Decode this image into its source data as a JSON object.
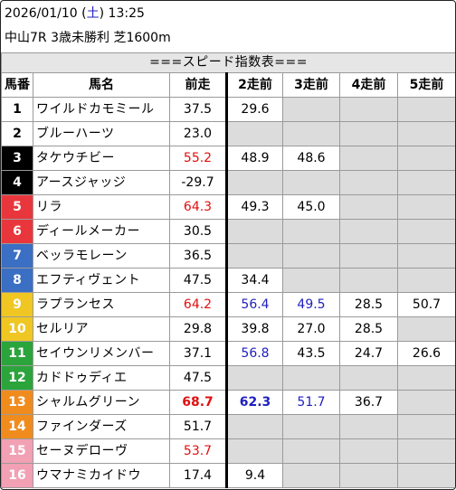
{
  "header": {
    "date": "2026/01/10",
    "weekday": "土",
    "time": "13:25",
    "race_info": "中山7R 3歳未勝利 芝1600m"
  },
  "table_title": "===スピード指数表===",
  "columns": [
    "馬番",
    "馬名",
    "前走",
    "2走前",
    "3走前",
    "4走前",
    "5走前"
  ],
  "colors": {
    "red_value": "#e01010",
    "blue_value": "#2020c0",
    "empty_cell": "#dcdcdc"
  },
  "horses": [
    {
      "num": "1",
      "name": "ワイルドカモミール",
      "bg": "#ffffff",
      "fg": "#000000",
      "vals": [
        "37.5",
        "29.6",
        "",
        "",
        ""
      ],
      "styles": [
        "",
        "",
        "",
        "",
        ""
      ]
    },
    {
      "num": "2",
      "name": "ブルーハーツ",
      "bg": "#ffffff",
      "fg": "#000000",
      "vals": [
        "23.0",
        "",
        "",
        "",
        ""
      ],
      "styles": [
        "",
        "",
        "",
        "",
        ""
      ]
    },
    {
      "num": "3",
      "name": "タケウチビー",
      "bg": "#000000",
      "fg": "#ffffff",
      "vals": [
        "55.2",
        "48.9",
        "48.6",
        "",
        ""
      ],
      "styles": [
        "red",
        "",
        "",
        "",
        ""
      ]
    },
    {
      "num": "4",
      "name": "アースジャッジ",
      "bg": "#000000",
      "fg": "#ffffff",
      "vals": [
        "-29.7",
        "",
        "",
        "",
        ""
      ],
      "styles": [
        "",
        "",
        "",
        "",
        ""
      ]
    },
    {
      "num": "5",
      "name": "リラ",
      "bg": "#e8363c",
      "fg": "#ffffff",
      "vals": [
        "64.3",
        "49.3",
        "45.0",
        "",
        ""
      ],
      "styles": [
        "red",
        "",
        "",
        "",
        ""
      ]
    },
    {
      "num": "6",
      "name": "ディールメーカー",
      "bg": "#e8363c",
      "fg": "#ffffff",
      "vals": [
        "30.5",
        "",
        "",
        "",
        ""
      ],
      "styles": [
        "",
        "",
        "",
        "",
        ""
      ]
    },
    {
      "num": "7",
      "name": "ベッラモレーン",
      "bg": "#3a6fc4",
      "fg": "#ffffff",
      "vals": [
        "36.5",
        "",
        "",
        "",
        ""
      ],
      "styles": [
        "",
        "",
        "",
        "",
        ""
      ]
    },
    {
      "num": "8",
      "name": "エフティヴェント",
      "bg": "#3a6fc4",
      "fg": "#ffffff",
      "vals": [
        "47.5",
        "34.4",
        "",
        "",
        ""
      ],
      "styles": [
        "",
        "",
        "",
        "",
        ""
      ]
    },
    {
      "num": "9",
      "name": "ラプランセス",
      "bg": "#f0c622",
      "fg": "#ffffff",
      "vals": [
        "64.2",
        "56.4",
        "49.5",
        "28.5",
        "50.7"
      ],
      "styles": [
        "red",
        "blue",
        "blue",
        "",
        ""
      ]
    },
    {
      "num": "10",
      "name": "セルリア",
      "bg": "#f0c622",
      "fg": "#ffffff",
      "vals": [
        "29.8",
        "39.8",
        "27.0",
        "28.5",
        ""
      ],
      "styles": [
        "",
        "",
        "",
        "",
        ""
      ]
    },
    {
      "num": "11",
      "name": "セイウンリメンバー",
      "bg": "#2ca43c",
      "fg": "#ffffff",
      "vals": [
        "37.1",
        "56.8",
        "43.5",
        "24.7",
        "26.6"
      ],
      "styles": [
        "",
        "blue",
        "",
        "",
        ""
      ]
    },
    {
      "num": "12",
      "name": "カドドゥディエ",
      "bg": "#2ca43c",
      "fg": "#ffffff",
      "vals": [
        "47.5",
        "",
        "",
        "",
        ""
      ],
      "styles": [
        "",
        "",
        "",
        "",
        ""
      ]
    },
    {
      "num": "13",
      "name": "シャルムグリーン",
      "bg": "#f08c1e",
      "fg": "#ffffff",
      "vals": [
        "68.7",
        "62.3",
        "51.7",
        "36.7",
        ""
      ],
      "styles": [
        "red-bold",
        "blue-bold",
        "blue",
        "",
        ""
      ]
    },
    {
      "num": "14",
      "name": "ファインダーズ",
      "bg": "#f08c1e",
      "fg": "#ffffff",
      "vals": [
        "51.7",
        "",
        "",
        "",
        ""
      ],
      "styles": [
        "",
        "",
        "",
        "",
        ""
      ]
    },
    {
      "num": "15",
      "name": "セーヌデローヴ",
      "bg": "#f2a0b4",
      "fg": "#ffffff",
      "vals": [
        "53.7",
        "",
        "",
        "",
        ""
      ],
      "styles": [
        "red",
        "",
        "",
        "",
        ""
      ]
    },
    {
      "num": "16",
      "name": "ウマナミカイドウ",
      "bg": "#f2a0b4",
      "fg": "#ffffff",
      "vals": [
        "17.4",
        "9.4",
        "",
        "",
        ""
      ],
      "styles": [
        "",
        "",
        "",
        "",
        ""
      ]
    }
  ]
}
